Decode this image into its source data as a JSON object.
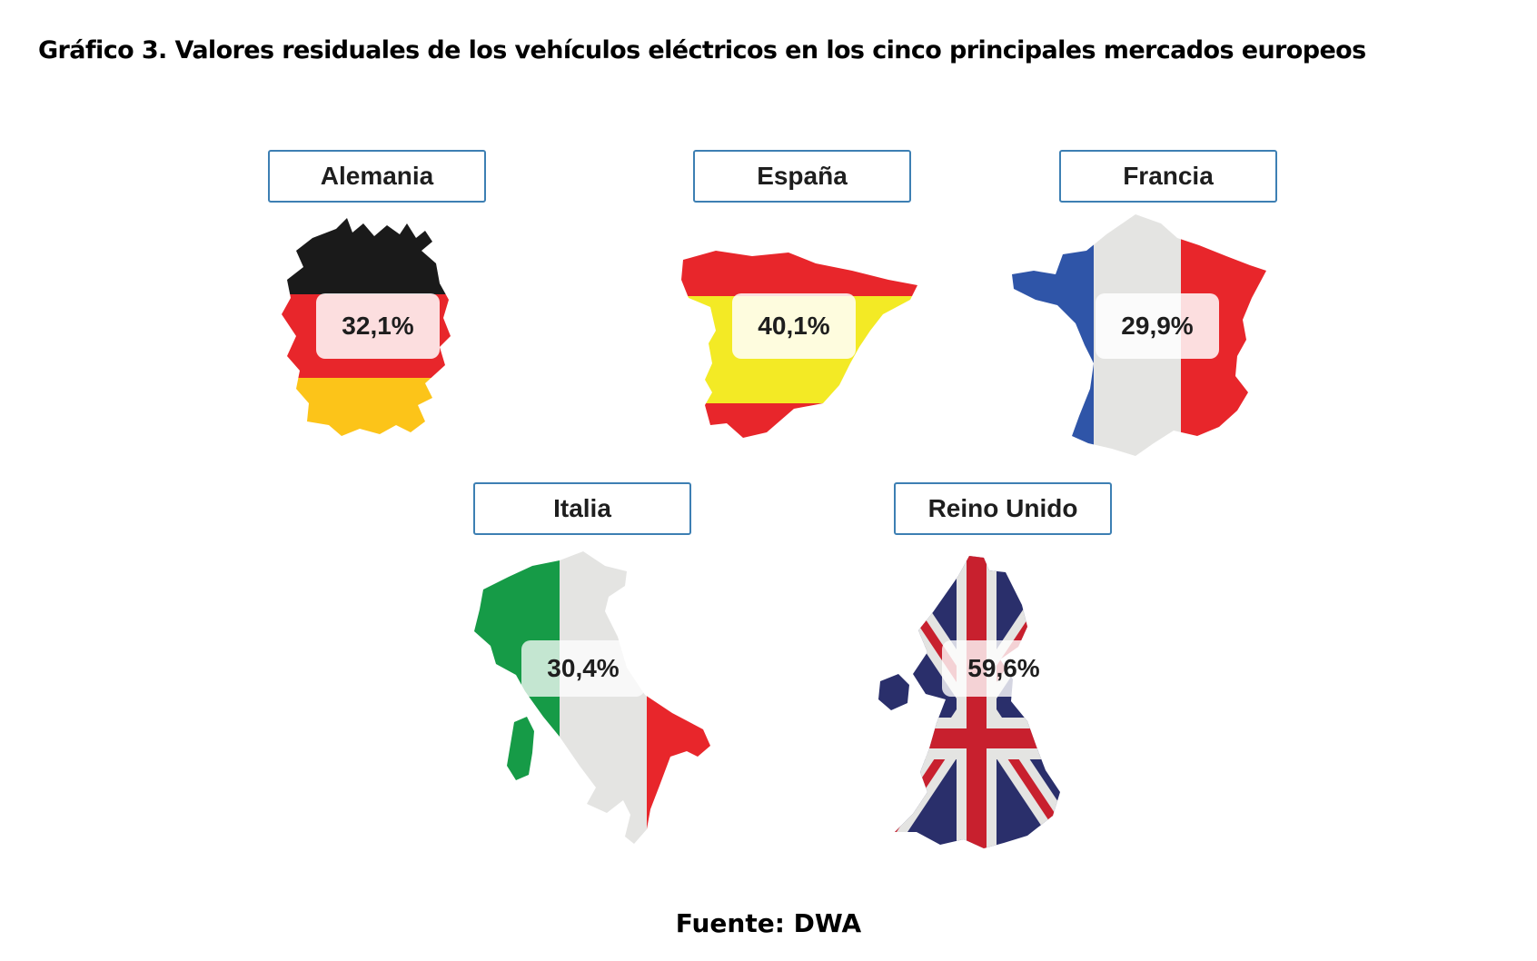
{
  "title": "Gráfico 3. Valores residuales de los vehículos eléctricos en los cinco principales mercados europeos",
  "source": "Fuente: DWA",
  "colors": {
    "label_border": "#3d7fb3",
    "black": "#1a1a1a",
    "red": "#e8262b",
    "gold": "#fcc419",
    "yellow": "#f3ea25",
    "blue": "#2f55a8",
    "white_grey": "#e4e4e2",
    "green": "#169b47",
    "navy": "#2a2f6b"
  },
  "chart_data": {
    "type": "table",
    "categories": [
      "Alemania",
      "España",
      "Francia",
      "Italia",
      "Reino Unido"
    ],
    "values": [
      32.1,
      40.1,
      29.9,
      30.4,
      59.6
    ],
    "value_labels": [
      "32,1%",
      "40,1%",
      "29,9%",
      "30,4%",
      "59,6%"
    ],
    "title": "Gráfico 3. Valores residuales de los vehículos eléctricos en los cinco principales mercados europeos"
  }
}
